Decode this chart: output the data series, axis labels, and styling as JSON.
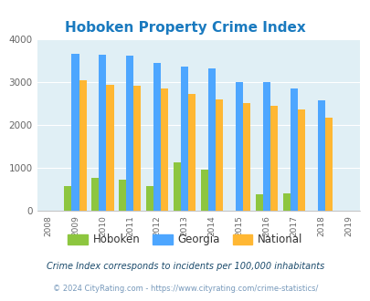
{
  "title": "Hoboken Property Crime Index",
  "plot_years": [
    2009,
    2010,
    2011,
    2012,
    2013,
    2014,
    2015,
    2016,
    2017,
    2018
  ],
  "hoboken": [
    580,
    760,
    730,
    575,
    1130,
    960,
    0,
    390,
    400,
    0
  ],
  "georgia": [
    3650,
    3640,
    3620,
    3440,
    3360,
    3310,
    3000,
    3000,
    2840,
    2570
  ],
  "national": [
    3040,
    2940,
    2910,
    2840,
    2720,
    2590,
    2500,
    2450,
    2360,
    2170
  ],
  "hoboken_color": "#8dc63f",
  "georgia_color": "#4da6ff",
  "national_color": "#ffb733",
  "bg_color": "#e0eff5",
  "ylim": [
    0,
    4000
  ],
  "yticks": [
    0,
    1000,
    2000,
    3000,
    4000
  ],
  "legend_labels": [
    "Hoboken",
    "Georgia",
    "National"
  ],
  "footnote1": "Crime Index corresponds to incidents per 100,000 inhabitants",
  "footnote2": "© 2024 CityRating.com - https://www.cityrating.com/crime-statistics/",
  "title_color": "#1a7abf",
  "footnote1_color": "#1a4a6b",
  "footnote2_color": "#7799bb",
  "all_xticks": [
    2008,
    2009,
    2010,
    2011,
    2012,
    2013,
    2014,
    2015,
    2016,
    2017,
    2018,
    2019
  ]
}
